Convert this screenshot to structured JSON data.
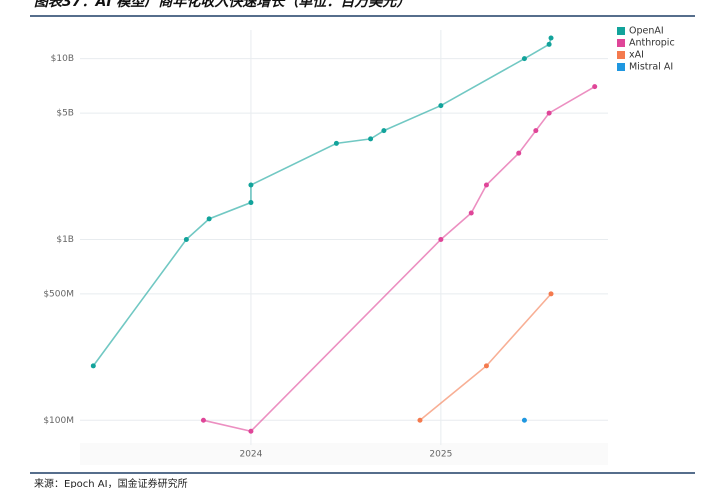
{
  "header": {
    "title": "图表37：AI 模型厂商年化收入快速增长（单位：百万美元）"
  },
  "chart_data": {
    "type": "line",
    "log_y": true,
    "grid": true,
    "legend": "top-right",
    "xlim": [
      2023.1,
      2025.88
    ],
    "xticks": [
      2024,
      2025
    ],
    "ylim": [
      73,
      14400
    ],
    "yticks": [
      {
        "value": 100,
        "label": "$100M"
      },
      {
        "value": 500,
        "label": "$500M"
      },
      {
        "value": 1000,
        "label": "$1B"
      },
      {
        "value": 5000,
        "label": "$5B"
      },
      {
        "value": 10000,
        "label": "$10B"
      }
    ],
    "series": [
      {
        "name": "OpenAI",
        "color": "#12a39b",
        "x": [
          2023.17,
          2023.66,
          2023.78,
          2024.0,
          2024.0,
          2024.45,
          2024.63,
          2024.7,
          2025.0,
          2025.44,
          2025.57,
          2025.58
        ],
        "values": [
          200,
          1000,
          1300,
          1600,
          2000,
          3400,
          3600,
          4000,
          5500,
          10000,
          12000,
          13000
        ]
      },
      {
        "name": "Anthropic",
        "color": "#df4598",
        "x": [
          2023.75,
          2024.0,
          2025.0,
          2025.16,
          2025.24,
          2025.41,
          2025.5,
          2025.57,
          2025.81
        ],
        "values": [
          100,
          87,
          1000,
          1400,
          2000,
          3000,
          4000,
          5000,
          7000
        ]
      },
      {
        "name": "xAI",
        "color": "#f47a4e",
        "x": [
          2024.89,
          2025.24,
          2025.58
        ],
        "values": [
          100,
          200,
          500
        ]
      },
      {
        "name": "Mistral AI",
        "color": "#1f97e0",
        "x": [
          2025.44
        ],
        "values": [
          100
        ]
      }
    ]
  },
  "footer": {
    "source": "来源：Epoch AI，国金证券研究所"
  }
}
